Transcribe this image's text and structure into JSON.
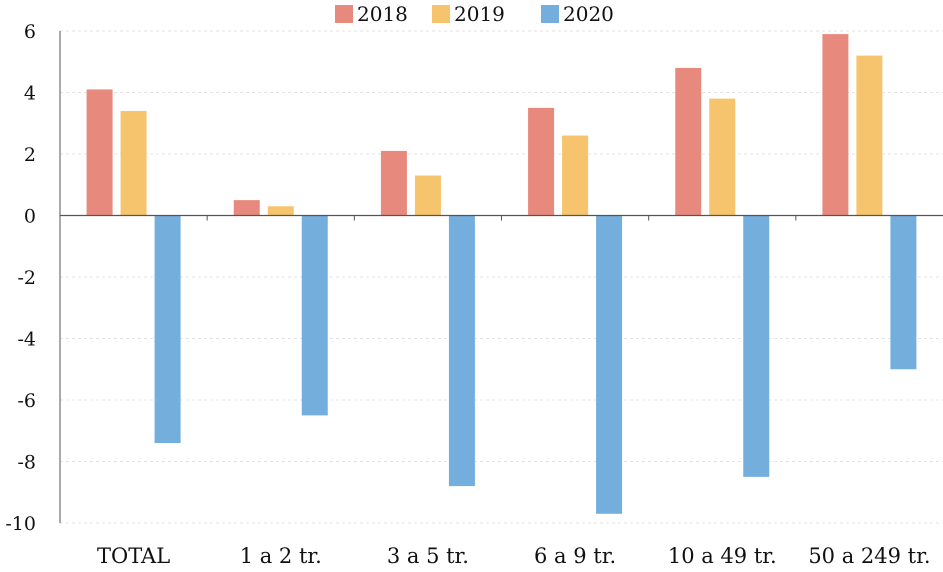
{
  "chart_data": {
    "type": "bar",
    "title": "",
    "xlabel": "",
    "ylabel": "",
    "ylim": [
      -10,
      6
    ],
    "yticks": [
      6,
      4,
      2,
      0,
      -2,
      -4,
      -6,
      -8,
      -10
    ],
    "ytick_labels": [
      "6",
      "4",
      "2",
      "0",
      "-2",
      "-4",
      "-6",
      "-8",
      "-10"
    ],
    "grid": true,
    "legend_position": "top",
    "categories": [
      "TOTAL",
      "1 a 2 tr.",
      "3 a 5 tr.",
      "6 a 9 tr.",
      "10 a 49 tr.",
      "50 a 249 tr."
    ],
    "series": [
      {
        "name": "2018",
        "color": "#E8897E",
        "values": [
          4.1,
          0.5,
          2.1,
          3.5,
          4.8,
          5.9
        ]
      },
      {
        "name": "2019",
        "color": "#F5C46C",
        "values": [
          3.4,
          0.3,
          1.3,
          2.6,
          3.8,
          5.2
        ]
      },
      {
        "name": "2020",
        "color": "#73AEDC",
        "values": [
          -7.4,
          -6.5,
          -8.8,
          -9.7,
          -8.5,
          -5.0
        ]
      }
    ]
  }
}
